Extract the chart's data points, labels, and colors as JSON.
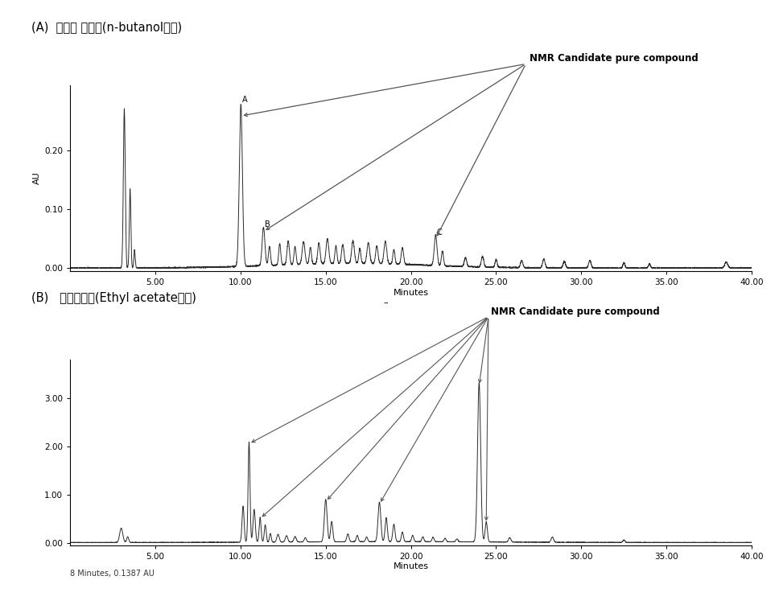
{
  "title_a": "(A)  영링향 추출물(n-butanol분획)",
  "title_b": "(B)   지모추출물(Ethyl acetate분획)",
  "nmr_label": "NMR Candidate pure compound",
  "xlabel": "Minutes",
  "ylabel_a": "AU",
  "footnote_b": "8 Minutes, 0.1387 AU",
  "xlim": [
    0,
    40
  ],
  "ylim_a": [
    -0.005,
    0.31
  ],
  "ylim_b": [
    -0.05,
    3.8
  ],
  "yticks_a": [
    0.0,
    0.1,
    0.2
  ],
  "yticks_b": [
    0.0,
    1.0,
    2.0,
    3.0
  ],
  "xticks": [
    5.0,
    10.0,
    15.0,
    20.0,
    25.0,
    30.0,
    35.0,
    40.0
  ],
  "bg_color": "#ffffff",
  "line_color": "#2a2a2a",
  "arrow_color": "#555555"
}
